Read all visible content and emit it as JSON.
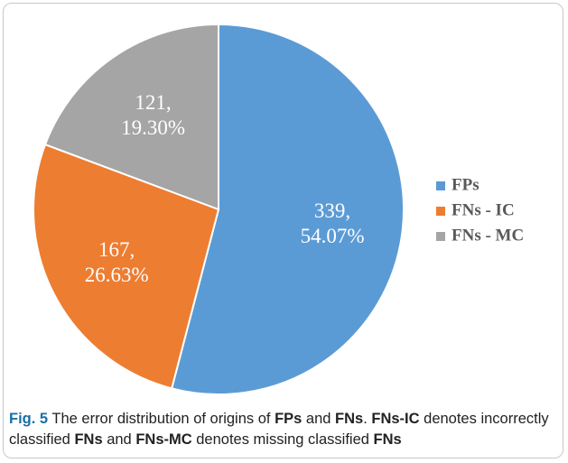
{
  "chart_data": {
    "type": "pie",
    "categories": [
      "FPs",
      "FNs - IC",
      "FNs - MC"
    ],
    "values": [
      339,
      167,
      121
    ],
    "value_labels": [
      "339,\n54.07%",
      "167,\n26.63%",
      "121,\n19.30%"
    ],
    "colors": [
      "#5b9bd5",
      "#ed7d31",
      "#a5a5a5"
    ],
    "legend": "right"
  },
  "caption": [
    {
      "text": "Fig. 5",
      "style": "fig"
    },
    {
      "text": " The error distribution of origins of ",
      "style": "plain"
    },
    {
      "text": "FPs",
      "style": "bold"
    },
    {
      "text": " and ",
      "style": "plain"
    },
    {
      "text": "FNs",
      "style": "bold"
    },
    {
      "text": ". ",
      "style": "plain"
    },
    {
      "text": "FNs-IC",
      "style": "bold"
    },
    {
      "text": " denotes incorrectly classified ",
      "style": "plain"
    },
    {
      "text": "FNs",
      "style": "bold"
    },
    {
      "text": " and ",
      "style": "plain"
    },
    {
      "text": "FNs-MC",
      "style": "bold"
    },
    {
      "text": " denotes missing classified ",
      "style": "plain"
    },
    {
      "text": "FNs",
      "style": "bold"
    }
  ]
}
